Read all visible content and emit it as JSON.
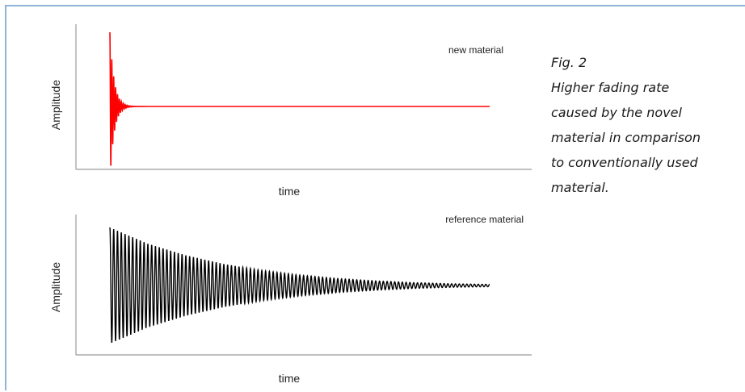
{
  "chart_data": [
    {
      "type": "line",
      "title": "",
      "annotation": "new material",
      "xlabel": "time",
      "ylabel": "Amplitude",
      "series": [
        {
          "name": "new material",
          "color": "#ff0000",
          "description": "damped oscillation: high amplitude at onset, decays to flat line almost immediately",
          "x": [
            0.0,
            0.005,
            0.01,
            0.015,
            0.02,
            0.03,
            0.04,
            0.05,
            0.07,
            0.1,
            0.2,
            0.4,
            0.6,
            0.8,
            1.0
          ],
          "y": [
            0.0,
            1.0,
            -0.75,
            0.55,
            -0.4,
            0.22,
            -0.12,
            0.06,
            0.02,
            0.0,
            0.0,
            0.0,
            0.0,
            0.0,
            0.0
          ]
        }
      ],
      "grid": false
    },
    {
      "type": "line",
      "title": "",
      "annotation": "reference material",
      "xlabel": "time",
      "ylabel": "Amplitude",
      "series": [
        {
          "name": "reference material",
          "color": "#000000",
          "description": "slowly decaying oscillation over the entire time window",
          "x": [
            0.0,
            0.1,
            0.2,
            0.3,
            0.4,
            0.5,
            0.6,
            0.7,
            0.8,
            0.9,
            1.0
          ],
          "y": [
            1.0,
            0.72,
            0.52,
            0.37,
            0.26,
            0.18,
            0.12,
            0.08,
            0.05,
            0.03,
            0.02
          ]
        }
      ],
      "grid": false
    }
  ],
  "caption": {
    "lines": [
      "Fig. 2",
      "Higher fading rate",
      "caused by the novel",
      "material in comparison",
      "to conventionally used",
      "material."
    ]
  },
  "colors": {
    "frame": "#8fb3d9",
    "new_series": "#ff0000",
    "reference_series": "#000000",
    "axis": "#9a9a9a"
  }
}
